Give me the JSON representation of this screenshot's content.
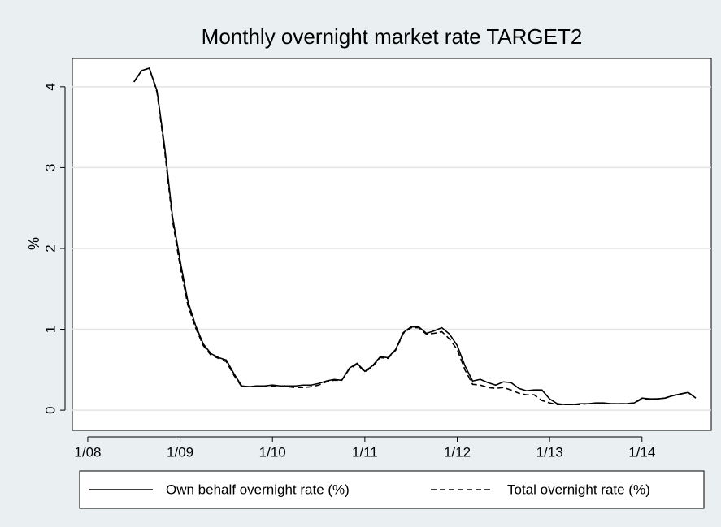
{
  "chart_data": {
    "type": "line",
    "title": "Monthly overnight market rate TARGET2",
    "y_label": "%",
    "x": [
      "2008-07",
      "2008-08",
      "2008-09",
      "2008-10",
      "2008-11",
      "2008-12",
      "2009-01",
      "2009-02",
      "2009-03",
      "2009-04",
      "2009-05",
      "2009-06",
      "2009-07",
      "2009-08",
      "2009-09",
      "2009-10",
      "2009-11",
      "2009-12",
      "2010-01",
      "2010-02",
      "2010-03",
      "2010-04",
      "2010-05",
      "2010-06",
      "2010-07",
      "2010-08",
      "2010-09",
      "2010-10",
      "2010-11",
      "2010-12",
      "2011-01",
      "2011-02",
      "2011-03",
      "2011-04",
      "2011-05",
      "2011-06",
      "2011-07",
      "2011-08",
      "2011-09",
      "2011-10",
      "2011-11",
      "2011-12",
      "2012-01",
      "2012-02",
      "2012-03",
      "2012-04",
      "2012-05",
      "2012-06",
      "2012-07",
      "2012-08",
      "2012-09",
      "2012-10",
      "2012-11",
      "2012-12",
      "2013-01",
      "2013-02",
      "2013-03",
      "2013-04",
      "2013-05",
      "2013-06",
      "2013-07",
      "2013-08",
      "2013-09",
      "2013-10",
      "2013-11",
      "2013-12",
      "2014-01",
      "2014-02",
      "2014-03",
      "2014-04",
      "2014-05",
      "2014-06",
      "2014-07",
      "2014-08"
    ],
    "series": [
      {
        "name": "Own behalf overnight rate (%)",
        "color": "#000000",
        "dash": "solid",
        "values": [
          4.06,
          4.2,
          4.23,
          3.95,
          3.25,
          2.4,
          1.85,
          1.35,
          1.05,
          0.82,
          0.7,
          0.65,
          0.62,
          0.45,
          0.3,
          0.29,
          0.3,
          0.3,
          0.31,
          0.3,
          0.3,
          0.3,
          0.31,
          0.31,
          0.33,
          0.36,
          0.38,
          0.37,
          0.52,
          0.58,
          0.48,
          0.55,
          0.66,
          0.65,
          0.75,
          0.96,
          1.03,
          1.03,
          0.95,
          0.98,
          1.02,
          0.94,
          0.8,
          0.55,
          0.36,
          0.38,
          0.34,
          0.31,
          0.35,
          0.34,
          0.27,
          0.24,
          0.25,
          0.25,
          0.14,
          0.08,
          0.07,
          0.07,
          0.08,
          0.08,
          0.09,
          0.09,
          0.08,
          0.08,
          0.08,
          0.09,
          0.15,
          0.14,
          0.14,
          0.15,
          0.18,
          0.2,
          0.22,
          0.15
        ]
      },
      {
        "name": "Total overnight rate (%)",
        "color": "#000000",
        "dash": "dashed",
        "values": [
          4.06,
          4.2,
          4.23,
          3.93,
          3.2,
          2.35,
          1.78,
          1.3,
          1.02,
          0.8,
          0.68,
          0.64,
          0.6,
          0.43,
          0.29,
          0.29,
          0.3,
          0.3,
          0.3,
          0.29,
          0.29,
          0.28,
          0.28,
          0.29,
          0.31,
          0.35,
          0.37,
          0.37,
          0.51,
          0.57,
          0.47,
          0.54,
          0.65,
          0.64,
          0.74,
          0.95,
          1.02,
          1.02,
          0.94,
          0.95,
          0.97,
          0.88,
          0.75,
          0.5,
          0.32,
          0.31,
          0.28,
          0.27,
          0.28,
          0.25,
          0.21,
          0.19,
          0.19,
          0.12,
          0.09,
          0.07,
          0.07,
          0.07,
          0.07,
          0.08,
          0.08,
          0.08,
          0.08,
          0.08,
          0.08,
          0.09,
          0.14,
          0.14,
          0.14,
          0.15,
          0.18,
          0.2,
          0.22,
          0.15
        ]
      }
    ],
    "xlim": [
      "2007-11",
      "2014-10"
    ],
    "xticks": [
      {
        "value": "2008-01",
        "label": "1/08"
      },
      {
        "value": "2009-01",
        "label": "1/09"
      },
      {
        "value": "2010-01",
        "label": "1/10"
      },
      {
        "value": "2011-01",
        "label": "1/11"
      },
      {
        "value": "2012-01",
        "label": "1/12"
      },
      {
        "value": "2013-01",
        "label": "1/13"
      },
      {
        "value": "2014-01",
        "label": "1/14"
      }
    ],
    "ylim": [
      -0.25,
      4.35
    ],
    "yticks": [
      0,
      1,
      2,
      3,
      4
    ],
    "grid": true,
    "legend": "bottom"
  }
}
